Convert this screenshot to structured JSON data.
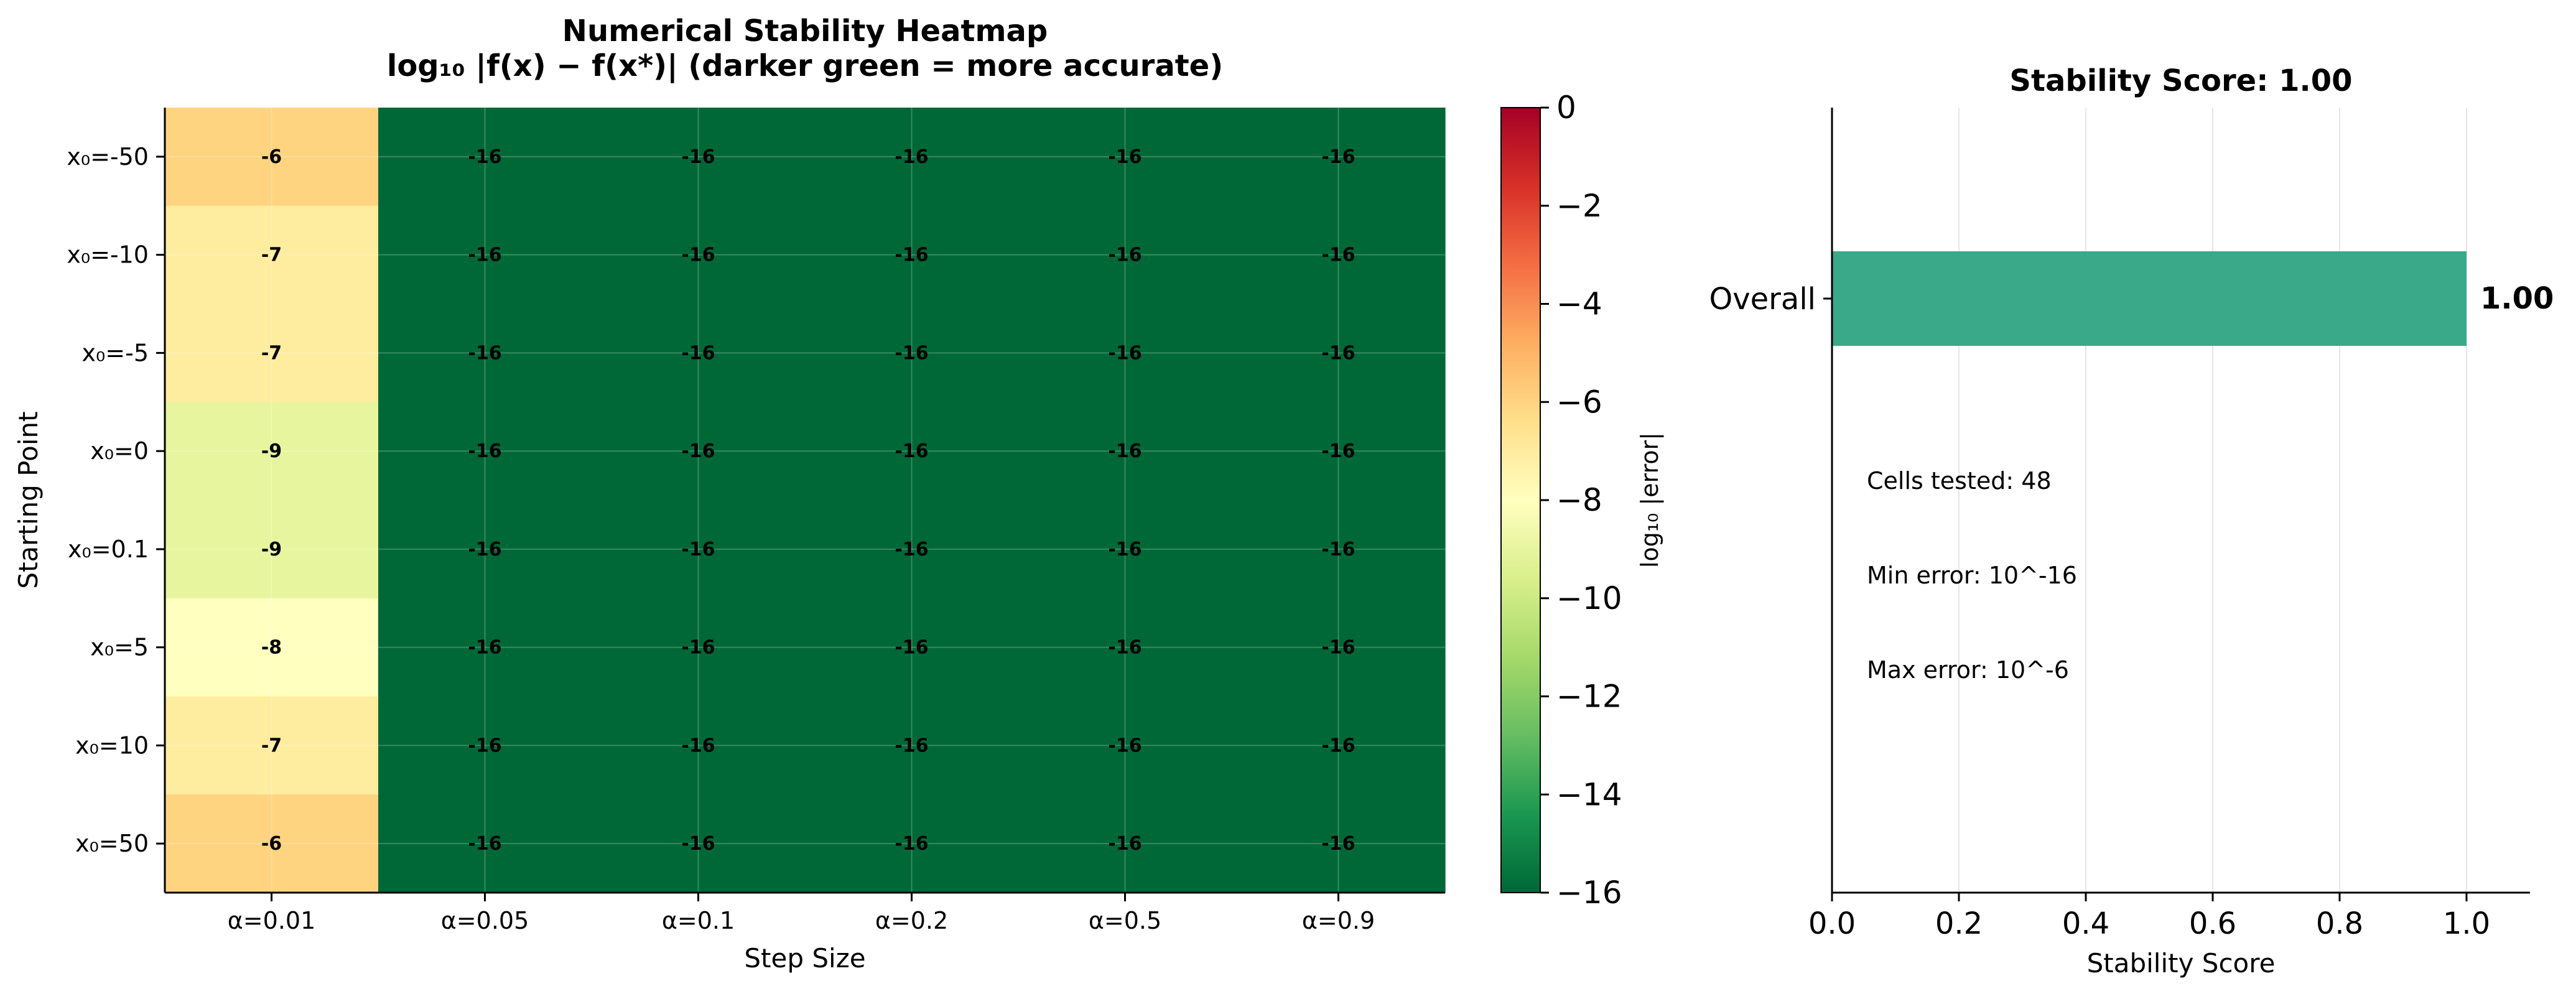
{
  "heatmap": {
    "title_line1": "Numerical Stability Heatmap",
    "title_line2": "log₁₀ |f(x) − f(x*)|  (darker green = more accurate)",
    "xlabel": "Step Size",
    "ylabel": "Starting Point",
    "colorbar_label": "log₁₀ |error|"
  },
  "stats": {
    "cells_tested": "Cells tested: 48",
    "min_error": "Min error: 10^-16",
    "max_error": "Max error: 10^-6"
  },
  "chart_data": [
    {
      "type": "heatmap",
      "title": "Numerical Stability Heatmap\nlog₁₀ |f(x) − f(x*)|  (darker green = more accurate)",
      "xlabel": "Step Size",
      "ylabel": "Starting Point",
      "x_categories": [
        "α=0.01",
        "α=0.05",
        "α=0.1",
        "α=0.2",
        "α=0.5",
        "α=0.9"
      ],
      "y_categories": [
        "x₀=-50",
        "x₀=-10",
        "x₀=-5",
        "x₀=0",
        "x₀=0.1",
        "x₀=5",
        "x₀=10",
        "x₀=50"
      ],
      "values": [
        [
          -6,
          -16,
          -16,
          -16,
          -16,
          -16
        ],
        [
          -7,
          -16,
          -16,
          -16,
          -16,
          -16
        ],
        [
          -7,
          -16,
          -16,
          -16,
          -16,
          -16
        ],
        [
          -9,
          -16,
          -16,
          -16,
          -16,
          -16
        ],
        [
          -9,
          -16,
          -16,
          -16,
          -16,
          -16
        ],
        [
          -8,
          -16,
          -16,
          -16,
          -16,
          -16
        ],
        [
          -7,
          -16,
          -16,
          -16,
          -16,
          -16
        ],
        [
          -6,
          -16,
          -16,
          -16,
          -16,
          -16
        ]
      ],
      "colormap": "RdYlGn (reversed: low = green)",
      "colorbar": {
        "label": "log₁₀ |error|",
        "range": [
          -16,
          0
        ],
        "ticks": [
          0,
          -2,
          -4,
          -6,
          -8,
          -10,
          -12,
          -14,
          -16
        ]
      },
      "grid": true
    },
    {
      "type": "bar",
      "orientation": "horizontal",
      "title": "Stability Score: 1.00",
      "xlabel": "Stability Score",
      "categories": [
        "Overall"
      ],
      "values": [
        1.0
      ],
      "value_labels": [
        "1.00"
      ],
      "xlim": [
        0,
        1.1
      ],
      "xticks": [
        "0.0",
        "0.2",
        "0.4",
        "0.6",
        "0.8",
        "1.0"
      ],
      "bar_color": "#39a98a",
      "grid": "vertical"
    }
  ]
}
